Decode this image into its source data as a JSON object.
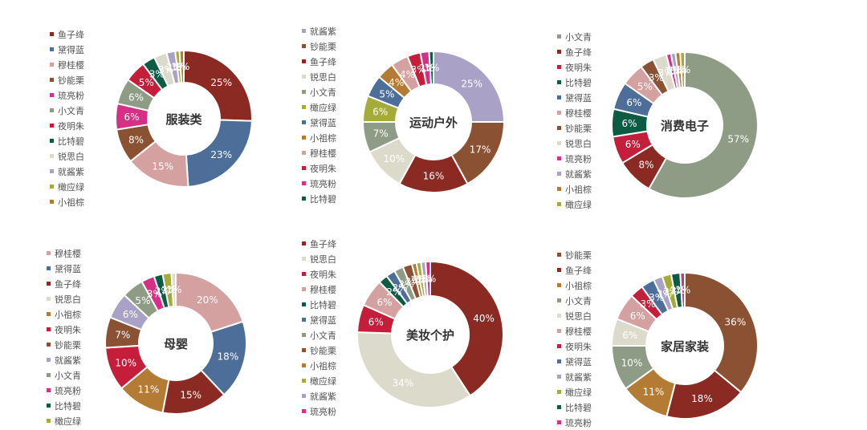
{
  "palette": {
    "鱼子绛": "#8B2A22",
    "黛得蓝": "#4E6E9A",
    "穆桂樱": "#D4A0A0",
    "钞能栗": "#8A5233",
    "琉亮粉": "#D62F86",
    "小文青": "#8E9C85",
    "夜明朱": "#C51E3A",
    "比特碧": "#0C5B43",
    "锐思白": "#DCDBCB",
    "就酱紫": "#A9A2C6",
    "橄应绿": "#A5AB38",
    "小祖棕": "#B47B35"
  },
  "chart_data": [
    {
      "type": "pie",
      "title": "服装类",
      "legend": [
        "鱼子绛",
        "黛得蓝",
        "穆桂樱",
        "钞能栗",
        "琉亮粉",
        "小文青",
        "夜明朱",
        "比特碧",
        "锐思白",
        "就酱紫",
        "橄应绿",
        "小祖棕"
      ],
      "slices": [
        {
          "name": "鱼子绛",
          "value": 25,
          "label": "25%"
        },
        {
          "name": "黛得蓝",
          "value": 23,
          "label": "23%"
        },
        {
          "name": "穆桂樱",
          "value": 15,
          "label": "15%"
        },
        {
          "name": "钞能栗",
          "value": 8,
          "label": "8%"
        },
        {
          "name": "琉亮粉",
          "value": 6,
          "label": "6%"
        },
        {
          "name": "小文青",
          "value": 6,
          "label": "6%"
        },
        {
          "name": "夜明朱",
          "value": 5,
          "label": "5%"
        },
        {
          "name": "比特碧",
          "value": 3,
          "label": "3%"
        },
        {
          "name": "锐思白",
          "value": 3,
          "label": "3%"
        },
        {
          "name": "就酱紫",
          "value": 2,
          "label": "2%"
        },
        {
          "name": "橄应绿",
          "value": 1,
          "label": "1%"
        },
        {
          "name": "小祖棕",
          "value": 1,
          "label": "1%"
        }
      ]
    },
    {
      "type": "pie",
      "title": "运动户外",
      "legend": [
        "就酱紫",
        "钞能栗",
        "鱼子绛",
        "锐思白",
        "小文青",
        "橄应绿",
        "黛得蓝",
        "小祖棕",
        "穆桂樱",
        "夜明朱",
        "琉亮粉",
        "比特碧"
      ],
      "slices": [
        {
          "name": "就酱紫",
          "value": 25,
          "label": "25%"
        },
        {
          "name": "钞能栗",
          "value": 17,
          "label": "17%"
        },
        {
          "name": "鱼子绛",
          "value": 16,
          "label": "16%"
        },
        {
          "name": "锐思白",
          "value": 10,
          "label": "10%"
        },
        {
          "name": "小文青",
          "value": 7,
          "label": "7%"
        },
        {
          "name": "橄应绿",
          "value": 6,
          "label": "6%"
        },
        {
          "name": "黛得蓝",
          "value": 5,
          "label": "5%"
        },
        {
          "name": "小祖棕",
          "value": 4,
          "label": "4%"
        },
        {
          "name": "穆桂樱",
          "value": 4,
          "label": "4%"
        },
        {
          "name": "夜明朱",
          "value": 3,
          "label": "3%"
        },
        {
          "name": "琉亮粉",
          "value": 2,
          "label": "2%"
        },
        {
          "name": "比特碧",
          "value": 1,
          "label": "1%"
        }
      ]
    },
    {
      "type": "pie",
      "title": "消费电子",
      "legend": [
        "小文青",
        "鱼子绛",
        "夜明朱",
        "比特碧",
        "黛得蓝",
        "穆桂樱",
        "钞能栗",
        "锐思白",
        "琉亮粉",
        "就酱紫",
        "小祖棕",
        "橄应绿"
      ],
      "slices": [
        {
          "name": "小文青",
          "value": 57,
          "label": "57%"
        },
        {
          "name": "鱼子绛",
          "value": 8,
          "label": "8%"
        },
        {
          "name": "夜明朱",
          "value": 6,
          "label": "6%"
        },
        {
          "name": "比特碧",
          "value": 6,
          "label": "6%"
        },
        {
          "name": "黛得蓝",
          "value": 6,
          "label": "6%"
        },
        {
          "name": "穆桂樱",
          "value": 5,
          "label": "5%"
        },
        {
          "name": "钞能栗",
          "value": 3,
          "label": "3%"
        },
        {
          "name": "锐思白",
          "value": 3,
          "label": "3%"
        },
        {
          "name": "琉亮粉",
          "value": 1,
          "label": "1%"
        },
        {
          "name": "就酱紫",
          "value": 1,
          "label": "1%"
        },
        {
          "name": "小祖棕",
          "value": 1,
          "label": "1%"
        },
        {
          "name": "橄应绿",
          "value": 1,
          "label": "1%"
        }
      ]
    },
    {
      "type": "pie",
      "title": "母婴",
      "legend": [
        "穆桂樱",
        "黛得蓝",
        "鱼子绛",
        "锐思白",
        "小祖棕",
        "夜明朱",
        "钞能栗",
        "就酱紫",
        "小文青",
        "琉亮粉",
        "比特碧",
        "橄应绿"
      ],
      "slices": [
        {
          "name": "穆桂樱",
          "value": 20,
          "label": "20%"
        },
        {
          "name": "黛得蓝",
          "value": 18,
          "label": "18%"
        },
        {
          "name": "鱼子绛",
          "value": 15,
          "label": "15%"
        },
        {
          "name": "小祖棕",
          "value": 11,
          "label": "11%"
        },
        {
          "name": "夜明朱",
          "value": 10,
          "label": "10%"
        },
        {
          "name": "钞能栗",
          "value": 7,
          "label": "7%"
        },
        {
          "name": "就酱紫",
          "value": 6,
          "label": "6%"
        },
        {
          "name": "小文青",
          "value": 5,
          "label": "5%"
        },
        {
          "name": "琉亮粉",
          "value": 3,
          "label": "3%"
        },
        {
          "name": "比特碧",
          "value": 2,
          "label": "2%"
        },
        {
          "name": "橄应绿",
          "value": 2,
          "label": "2%"
        },
        {
          "name": "锐思白",
          "value": 1,
          "label": "1%"
        }
      ]
    },
    {
      "type": "pie",
      "title": "美妆个护",
      "legend": [
        "鱼子绛",
        "锐思白",
        "夜明朱",
        "穆桂樱",
        "比特碧",
        "黛得蓝",
        "小文青",
        "钞能栗",
        "小祖棕",
        "橄应绿",
        "就酱紫",
        "琉亮粉"
      ],
      "slices": [
        {
          "name": "鱼子绛",
          "value": 40,
          "label": "40%"
        },
        {
          "name": "锐思白",
          "value": 34,
          "label": "34%"
        },
        {
          "name": "夜明朱",
          "value": 6,
          "label": "6%"
        },
        {
          "name": "穆桂樱",
          "value": 6,
          "label": "6%"
        },
        {
          "name": "比特碧",
          "value": 2,
          "label": "2%"
        },
        {
          "name": "黛得蓝",
          "value": 2,
          "label": "2%"
        },
        {
          "name": "小文青",
          "value": 2,
          "label": "2%"
        },
        {
          "name": "钞能栗",
          "value": 2,
          "label": "2%"
        },
        {
          "name": "小祖棕",
          "value": 1,
          "label": "1%"
        },
        {
          "name": "橄应绿",
          "value": 1,
          "label": "1%"
        },
        {
          "name": "就酱紫",
          "value": 1,
          "label": "1%"
        },
        {
          "name": "琉亮粉",
          "value": 1,
          "label": "1%"
        }
      ]
    },
    {
      "type": "pie",
      "title": "家居家装",
      "legend": [
        "钞能栗",
        "鱼子绛",
        "小祖棕",
        "小文青",
        "锐思白",
        "穆桂樱",
        "夜明朱",
        "黛得蓝",
        "就酱紫",
        "橄应绿",
        "比特碧",
        "琉亮粉"
      ],
      "slices": [
        {
          "name": "钞能栗",
          "value": 36,
          "label": "36%"
        },
        {
          "name": "鱼子绛",
          "value": 18,
          "label": "18%"
        },
        {
          "name": "小祖棕",
          "value": 11,
          "label": "11%"
        },
        {
          "name": "小文青",
          "value": 10,
          "label": "10%"
        },
        {
          "name": "锐思白",
          "value": 6,
          "label": "6%"
        },
        {
          "name": "穆桂樱",
          "value": 6,
          "label": "6%"
        },
        {
          "name": "夜明朱",
          "value": 3,
          "label": "3%"
        },
        {
          "name": "黛得蓝",
          "value": 3,
          "label": "3%"
        },
        {
          "name": "就酱紫",
          "value": 2,
          "label": "2%"
        },
        {
          "name": "橄应绿",
          "value": 2,
          "label": "2%"
        },
        {
          "name": "比特碧",
          "value": 2,
          "label": "2%"
        },
        {
          "name": "琉亮粉",
          "value": 1,
          "label": "1%"
        }
      ]
    }
  ]
}
